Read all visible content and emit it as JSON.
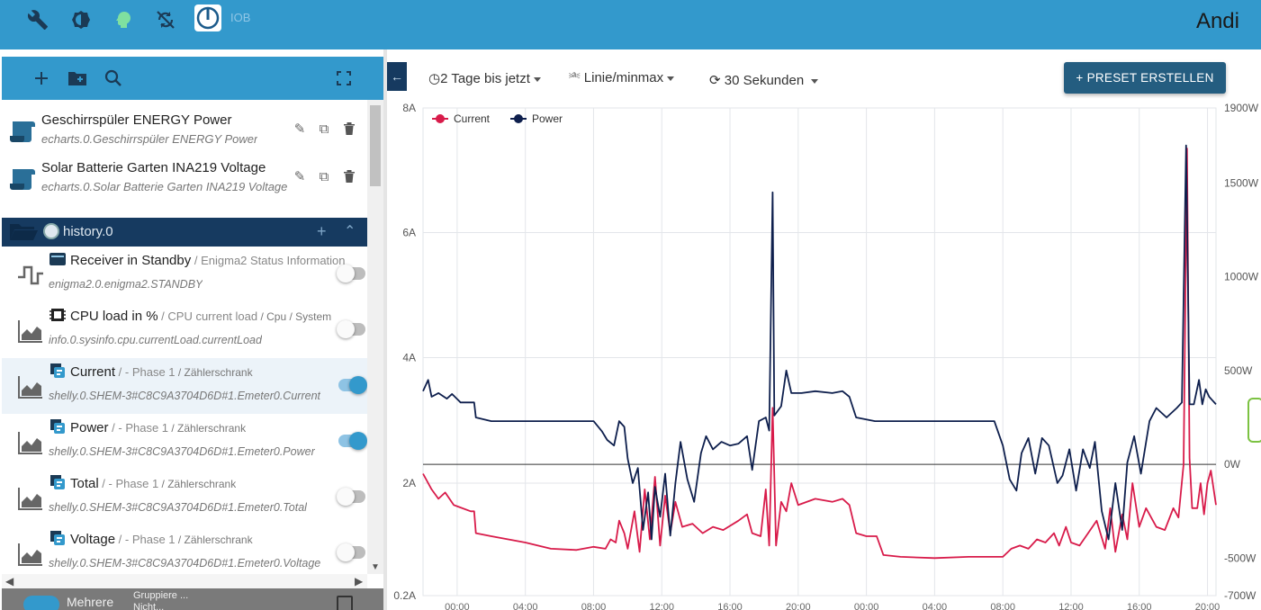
{
  "topbar": {
    "icons": [
      "wrench-icon",
      "settings-icon",
      "expert-mode-icon",
      "sync-off-icon"
    ],
    "logo_text": "IOB",
    "user": "Andi"
  },
  "left_toolbar": {
    "icons": [
      "add-icon",
      "add-folder-icon",
      "search-icon",
      "fullscreen-icon"
    ]
  },
  "charts": [
    {
      "title": "Geschirrspüler ENERGY Power",
      "subtitle": "echarts.0.Geschirrspüler ENERGY Power"
    },
    {
      "title": "Solar Batterie Garten INA219 Voltage",
      "subtitle": "echarts.0.Solar Batterie Garten INA219 Voltage"
    }
  ],
  "folder": {
    "label": "history.0"
  },
  "datapoints": [
    {
      "name": "Receiver in Standby",
      "sep": " / ",
      "desc": "Enigma2 Status Information",
      "small": "",
      "id": "enigma2.0.enigma2.STANDBY",
      "type_icon": "step-chart-icon",
      "enabled": false
    },
    {
      "name": "CPU load in %",
      "sep": " / ",
      "desc": "CPU current load",
      "small": " / Cpu / System",
      "id": "info.0.sysinfo.cpu.currentLoad.currentLoad",
      "type_icon": "area-chart-icon",
      "enabled": false
    },
    {
      "name": "Current",
      "sep": " / ",
      "desc": "- Phase 1",
      "small": " / Zählerschrank",
      "id": "shelly.0.SHEM-3#C8C9A3704D6D#1.Emeter0.Current",
      "type_icon": "area-chart-icon",
      "enabled": true
    },
    {
      "name": "Power",
      "sep": " / ",
      "desc": "- Phase 1",
      "small": " / Zählerschrank",
      "id": "shelly.0.SHEM-3#C8C9A3704D6D#1.Emeter0.Power",
      "type_icon": "area-chart-icon",
      "enabled": true
    },
    {
      "name": "Total",
      "sep": " / ",
      "desc": "- Phase 1",
      "small": " / Zählerschrank",
      "id": "shelly.0.SHEM-3#C8C9A3704D6D#1.Emeter0.Total",
      "type_icon": "area-chart-icon",
      "enabled": false
    },
    {
      "name": "Voltage",
      "sep": " / ",
      "desc": "- Phase 1",
      "small": " / Zählerschrank",
      "id": "shelly.0.SHEM-3#C8C9A3704D6D#1.Emeter0.Voltage",
      "type_icon": "area-chart-icon",
      "enabled": false
    }
  ],
  "bottom_strip": {
    "label": "Mehrere",
    "line1": "Gruppiere ...",
    "line2": "Nicht..."
  },
  "controls": {
    "range": "2 Tage bis jetzt",
    "chart_type": "Linie/minmax",
    "refresh": "30 Sekunden",
    "preset_button": "+ PRESET ERSTELLEN"
  },
  "colors": {
    "accent": "#3399cc",
    "current": "#d81b4a",
    "power": "#0e1f4d"
  },
  "chart_data": {
    "type": "line",
    "legend": [
      "Current",
      "Power"
    ],
    "legend_position": "top-left",
    "grid": true,
    "x_ticks": [
      "00:00",
      "04:00",
      "08:00",
      "12:00",
      "16:00",
      "20:00",
      "00:00",
      "04:00",
      "08:00",
      "12:00",
      "16:00",
      "20:00"
    ],
    "y_left_ticks": [
      "8A",
      "6A",
      "4A",
      "2A",
      "0.2A"
    ],
    "y_right_ticks": [
      "1900W",
      "1500W",
      "1000W",
      "500W",
      "0W",
      "-500W",
      "-700W"
    ],
    "y_left_range": [
      0.2,
      8
    ],
    "y_right_range": [
      -700,
      1900
    ],
    "x_range_hours": [
      -2,
      44.5
    ],
    "series": [
      {
        "name": "Current",
        "axis": "left",
        "points": [
          [
            -2,
            2.15
          ],
          [
            -1.5,
            1.9
          ],
          [
            -1.1,
            1.75
          ],
          [
            -0.7,
            1.85
          ],
          [
            -0.2,
            1.65
          ],
          [
            0.8,
            1.55
          ],
          [
            1,
            1.55
          ],
          [
            1.1,
            1.2
          ],
          [
            2,
            1.15
          ],
          [
            4,
            1.05
          ],
          [
            5.5,
            0.95
          ],
          [
            7,
            0.93
          ],
          [
            8,
            0.98
          ],
          [
            8.7,
            0.95
          ],
          [
            9,
            1.1
          ],
          [
            9.3,
            1.05
          ],
          [
            9.5,
            1.4
          ],
          [
            9.8,
            1.2
          ],
          [
            10,
            0.95
          ],
          [
            10.4,
            1.55
          ],
          [
            10.7,
            0.9
          ],
          [
            11,
            1.9
          ],
          [
            11.3,
            1.1
          ],
          [
            11.6,
            2.1
          ],
          [
            11.9,
            1.0
          ],
          [
            12.2,
            1.8
          ],
          [
            12.5,
            1.2
          ],
          [
            12.8,
            1.7
          ],
          [
            13.2,
            1.3
          ],
          [
            13.8,
            1.35
          ],
          [
            14.4,
            1.2
          ],
          [
            15,
            1.3
          ],
          [
            15.6,
            1.25
          ],
          [
            16.5,
            1.4
          ],
          [
            17,
            1.5
          ],
          [
            17.3,
            1.2
          ],
          [
            17.8,
            1.15
          ],
          [
            18.1,
            1.9
          ],
          [
            18.3,
            1.0
          ],
          [
            18.5,
            3.2
          ],
          [
            18.7,
            1.0
          ],
          [
            19.0,
            1.7
          ],
          [
            19.3,
            1.55
          ],
          [
            19.6,
            2.0
          ],
          [
            20,
            1.65
          ],
          [
            21,
            1.75
          ],
          [
            22,
            1.7
          ],
          [
            22.6,
            1.75
          ],
          [
            23,
            1.65
          ],
          [
            23.4,
            1.2
          ],
          [
            24,
            1.15
          ],
          [
            24.6,
            1.15
          ],
          [
            25,
            0.85
          ],
          [
            26,
            0.82
          ],
          [
            28,
            0.8
          ],
          [
            30,
            0.82
          ],
          [
            32,
            0.82
          ],
          [
            32.5,
            0.95
          ],
          [
            33,
            1.0
          ],
          [
            33.5,
            0.95
          ],
          [
            34,
            1.1
          ],
          [
            34.5,
            1.05
          ],
          [
            35,
            1.2
          ],
          [
            35.3,
            1.0
          ],
          [
            35.7,
            1.3
          ],
          [
            36,
            1.05
          ],
          [
            36.5,
            1.0
          ],
          [
            37,
            1.2
          ],
          [
            37.5,
            1.4
          ],
          [
            38,
            0.95
          ],
          [
            38.3,
            1.6
          ],
          [
            38.6,
            0.9
          ],
          [
            39,
            1.5
          ],
          [
            39.3,
            1.1
          ],
          [
            39.6,
            2.0
          ],
          [
            40,
            1.3
          ],
          [
            40.4,
            1.6
          ],
          [
            41,
            1.3
          ],
          [
            41.5,
            1.25
          ],
          [
            42,
            1.6
          ],
          [
            42.3,
            1.45
          ],
          [
            42.6,
            2.3
          ],
          [
            42.8,
            7.35
          ],
          [
            42.95,
            2.4
          ],
          [
            43.1,
            1.6
          ],
          [
            43.4,
            1.6
          ],
          [
            43.6,
            2.0
          ],
          [
            43.8,
            1.5
          ],
          [
            44,
            2.0
          ],
          [
            44.2,
            2.2
          ],
          [
            44.5,
            1.65
          ]
        ]
      },
      {
        "name": "Power",
        "axis": "right",
        "points": [
          [
            -2,
            390
          ],
          [
            -1.7,
            450
          ],
          [
            -1.5,
            360
          ],
          [
            -1.1,
            380
          ],
          [
            -0.6,
            350
          ],
          [
            -0.3,
            375
          ],
          [
            0.2,
            330
          ],
          [
            1.0,
            330
          ],
          [
            1.1,
            250
          ],
          [
            2,
            230
          ],
          [
            4,
            230
          ],
          [
            6,
            230
          ],
          [
            8.0,
            230
          ],
          [
            8.5,
            175
          ],
          [
            8.8,
            130
          ],
          [
            9.2,
            100
          ],
          [
            9.5,
            230
          ],
          [
            9.8,
            200
          ],
          [
            10,
            30
          ],
          [
            10.3,
            -100
          ],
          [
            10.6,
            -20
          ],
          [
            10.9,
            -350
          ],
          [
            11.2,
            -150
          ],
          [
            11.4,
            -400
          ],
          [
            11.6,
            -120
          ],
          [
            11.9,
            -280
          ],
          [
            12.2,
            -50
          ],
          [
            12.5,
            -380
          ],
          [
            12.8,
            -100
          ],
          [
            13.1,
            120
          ],
          [
            13.5,
            -80
          ],
          [
            13.9,
            -200
          ],
          [
            14.3,
            60
          ],
          [
            14.6,
            150
          ],
          [
            15,
            80
          ],
          [
            15.5,
            120
          ],
          [
            16,
            100
          ],
          [
            16.5,
            110
          ],
          [
            17,
            150
          ],
          [
            17.3,
            -30
          ],
          [
            17.7,
            230
          ],
          [
            18.1,
            250
          ],
          [
            18.3,
            180
          ],
          [
            18.5,
            1450
          ],
          [
            18.6,
            260
          ],
          [
            19,
            310
          ],
          [
            19.3,
            500
          ],
          [
            19.6,
            380
          ],
          [
            20.2,
            380
          ],
          [
            21,
            390
          ],
          [
            22,
            380
          ],
          [
            22.6,
            390
          ],
          [
            23,
            360
          ],
          [
            23.4,
            250
          ],
          [
            24.5,
            230
          ],
          [
            27,
            230
          ],
          [
            29,
            230
          ],
          [
            31.5,
            230
          ],
          [
            32,
            100
          ],
          [
            32.4,
            -80
          ],
          [
            32.8,
            -140
          ],
          [
            33.1,
            60
          ],
          [
            33.5,
            140
          ],
          [
            33.9,
            -50
          ],
          [
            34.3,
            140
          ],
          [
            34.7,
            100
          ],
          [
            35.2,
            -100
          ],
          [
            35.5,
            -60
          ],
          [
            35.9,
            80
          ],
          [
            36.3,
            -140
          ],
          [
            36.7,
            80
          ],
          [
            37.1,
            -20
          ],
          [
            37.4,
            120
          ],
          [
            37.8,
            -250
          ],
          [
            38.2,
            -400
          ],
          [
            38.6,
            -100
          ],
          [
            39,
            -350
          ],
          [
            39.3,
            10
          ],
          [
            39.7,
            150
          ],
          [
            40.1,
            -50
          ],
          [
            40.6,
            230
          ],
          [
            41,
            300
          ],
          [
            41.6,
            250
          ],
          [
            42.2,
            300
          ],
          [
            42.5,
            330
          ],
          [
            42.75,
            1700
          ],
          [
            42.95,
            320
          ],
          [
            43.2,
            320
          ],
          [
            43.5,
            450
          ],
          [
            43.7,
            320
          ],
          [
            43.9,
            400
          ],
          [
            44.1,
            360
          ],
          [
            44.3,
            340
          ],
          [
            44.5,
            320
          ]
        ]
      }
    ]
  }
}
